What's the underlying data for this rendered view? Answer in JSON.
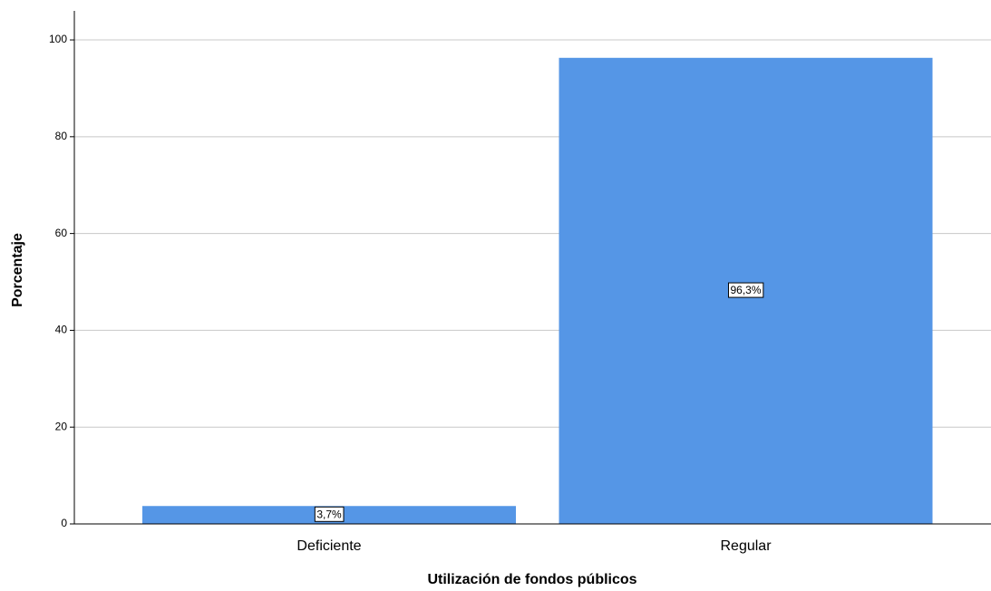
{
  "chart_data": {
    "type": "bar",
    "categories": [
      "Deficiente",
      "Regular"
    ],
    "values": [
      3.7,
      96.3
    ],
    "value_labels": [
      "3,7%",
      "96,3%"
    ],
    "color": "#5596e6",
    "x_label": "Utilización de fondos públicos",
    "y_label": "Porcentaje",
    "ylim": [
      0,
      106
    ],
    "yticks": [
      0,
      20,
      40,
      60,
      80,
      100
    ],
    "grid": true
  }
}
